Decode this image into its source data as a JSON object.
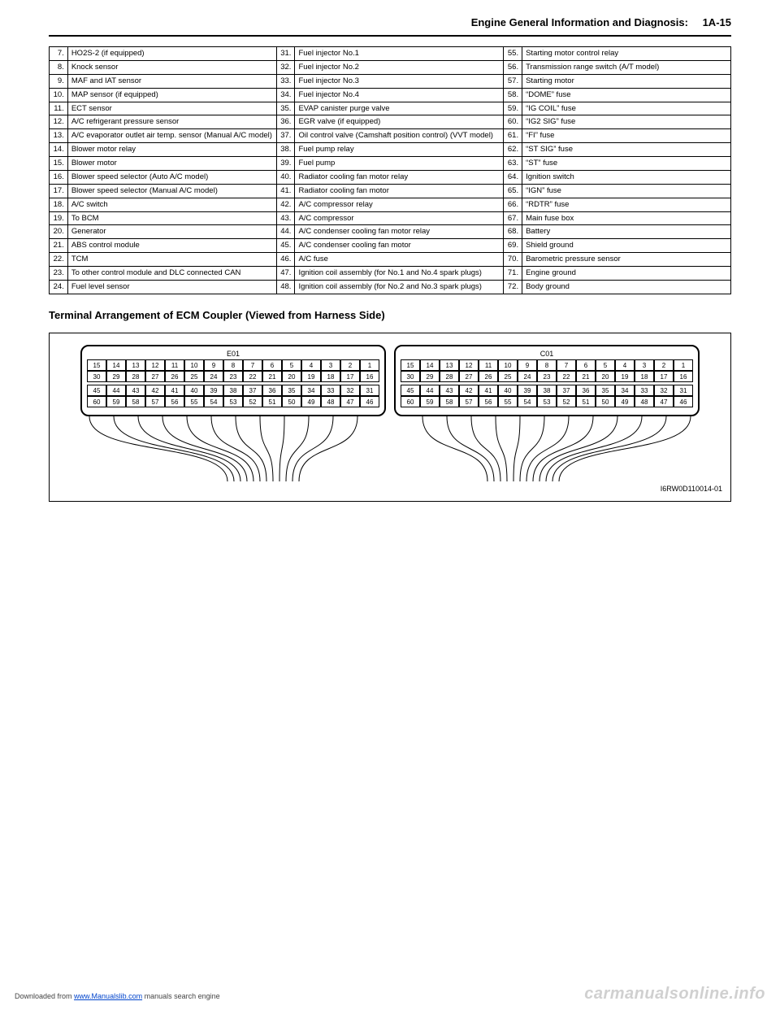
{
  "header": {
    "title": "Engine General Information and Diagnosis:",
    "page": "1A-15"
  },
  "table": {
    "rows": [
      [
        "7.",
        "HO2S-2 (if equipped)",
        "31.",
        "Fuel injector No.1",
        "55.",
        "Starting motor control relay"
      ],
      [
        "8.",
        "Knock sensor",
        "32.",
        "Fuel injector No.2",
        "56.",
        "Transmission range switch (A/T model)"
      ],
      [
        "9.",
        "MAF and IAT sensor",
        "33.",
        "Fuel injector No.3",
        "57.",
        "Starting motor"
      ],
      [
        "10.",
        "MAP sensor (if equipped)",
        "34.",
        "Fuel injector No.4",
        "58.",
        "“DOME” fuse"
      ],
      [
        "11.",
        "ECT sensor",
        "35.",
        "EVAP canister purge valve",
        "59.",
        "“IG COIL” fuse"
      ],
      [
        "12.",
        "A/C refrigerant pressure sensor",
        "36.",
        "EGR valve (if equipped)",
        "60.",
        "“IG2 SIG” fuse"
      ],
      [
        "13.",
        "A/C evaporator outlet air temp. sensor (Manual A/C model)",
        "37.",
        "Oil control valve (Camshaft position control) (VVT model)",
        "61.",
        "“FI” fuse"
      ],
      [
        "14.",
        "Blower motor relay",
        "38.",
        "Fuel pump relay",
        "62.",
        "“ST SIG” fuse"
      ],
      [
        "15.",
        "Blower motor",
        "39.",
        "Fuel pump",
        "63.",
        "“ST” fuse"
      ],
      [
        "16.",
        "Blower speed selector (Auto A/C model)",
        "40.",
        "Radiator cooling fan motor relay",
        "64.",
        "Ignition switch"
      ],
      [
        "17.",
        "Blower speed selector (Manual A/C model)",
        "41.",
        "Radiator cooling fan motor",
        "65.",
        "“IGN” fuse"
      ],
      [
        "18.",
        "A/C switch",
        "42.",
        "A/C compressor relay",
        "66.",
        "“RDTR” fuse"
      ],
      [
        "19.",
        "To BCM",
        "43.",
        "A/C compressor",
        "67.",
        "Main fuse box"
      ],
      [
        "20.",
        "Generator",
        "44.",
        "A/C condenser cooling fan motor relay",
        "68.",
        "Battery"
      ],
      [
        "21.",
        "ABS control module",
        "45.",
        "A/C condenser cooling fan motor",
        "69.",
        "Shield ground"
      ],
      [
        "22.",
        "TCM",
        "46.",
        "A/C fuse",
        "70.",
        "Barometric pressure sensor"
      ],
      [
        "23.",
        "To other control module and DLC connected CAN",
        "47.",
        "Ignition coil assembly (for No.1 and No.4 spark plugs)",
        "71.",
        "Engine ground"
      ],
      [
        "24.",
        "Fuel level sensor",
        "48.",
        "Ignition coil assembly (for No.2 and No.3 spark plugs)",
        "72.",
        "Body ground"
      ]
    ]
  },
  "subheading": "Terminal Arrangement of ECM Coupler (Viewed from Harness Side)",
  "diagram": {
    "connectors": [
      {
        "label": "E01",
        "blocks": [
          [
            [
              "15",
              "14",
              "13",
              "12",
              "11",
              "10",
              "9",
              "8",
              "7",
              "6",
              "5",
              "4",
              "3",
              "2",
              "1"
            ],
            [
              "30",
              "29",
              "28",
              "27",
              "26",
              "25",
              "24",
              "23",
              "22",
              "21",
              "20",
              "19",
              "18",
              "17",
              "16"
            ]
          ],
          [
            [
              "45",
              "44",
              "43",
              "42",
              "41",
              "40",
              "39",
              "38",
              "37",
              "36",
              "35",
              "34",
              "33",
              "32",
              "31"
            ],
            [
              "60",
              "59",
              "58",
              "57",
              "56",
              "55",
              "54",
              "53",
              "52",
              "51",
              "50",
              "49",
              "48",
              "47",
              "46"
            ]
          ]
        ]
      },
      {
        "label": "C01",
        "blocks": [
          [
            [
              "15",
              "14",
              "13",
              "12",
              "11",
              "10",
              "9",
              "8",
              "7",
              "6",
              "5",
              "4",
              "3",
              "2",
              "1"
            ],
            [
              "30",
              "29",
              "28",
              "27",
              "26",
              "25",
              "24",
              "23",
              "22",
              "21",
              "20",
              "19",
              "18",
              "17",
              "16"
            ]
          ],
          [
            [
              "45",
              "44",
              "43",
              "42",
              "41",
              "40",
              "39",
              "38",
              "37",
              "36",
              "35",
              "34",
              "33",
              "32",
              "31"
            ],
            [
              "60",
              "59",
              "58",
              "57",
              "56",
              "55",
              "54",
              "53",
              "52",
              "51",
              "50",
              "49",
              "48",
              "47",
              "46"
            ]
          ]
        ]
      }
    ],
    "figure_id": "I6RW0D110014-01",
    "wire_stroke": "#000000",
    "wire_width": 1
  },
  "footer": {
    "left_pre": "Downloaded from ",
    "left_link": "www.Manualslib.com",
    "left_post": " manuals search engine",
    "right": "carmanualsonline.info"
  }
}
